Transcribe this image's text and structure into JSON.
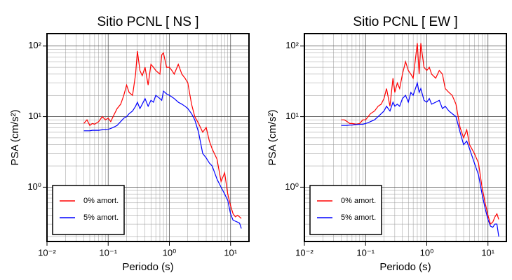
{
  "chart_data": [
    {
      "type": "line",
      "title": "Sitio PCNL [ NS ]",
      "x_label": "Periodo (s)",
      "y_label": "PSA (cm/s²)",
      "xscale": "log",
      "yscale": "log",
      "grid": true,
      "legend": "lower left",
      "xlim": [
        0.01,
        20
      ],
      "ylim": [
        0.17,
        150
      ],
      "xticks": [
        {
          "value": 0.01,
          "label": "10⁻²"
        },
        {
          "value": 0.1,
          "label": "10⁻¹"
        },
        {
          "value": 1,
          "label": "10⁰"
        },
        {
          "value": 10,
          "label": "10¹"
        }
      ],
      "yticks": [
        {
          "value": 1,
          "label": "10⁰"
        },
        {
          "value": 10,
          "label": "10¹"
        },
        {
          "value": 100,
          "label": "10²"
        }
      ],
      "x": [
        0.04,
        0.045,
        0.05,
        0.055,
        0.06,
        0.07,
        0.08,
        0.09,
        0.1,
        0.11,
        0.12,
        0.14,
        0.16,
        0.18,
        0.2,
        0.22,
        0.25,
        0.28,
        0.3,
        0.33,
        0.36,
        0.4,
        0.45,
        0.5,
        0.55,
        0.6,
        0.7,
        0.75,
        0.8,
        0.9,
        1.0,
        1.1,
        1.2,
        1.4,
        1.6,
        1.8,
        2.0,
        2.3,
        2.6,
        3.0,
        3.5,
        4.0,
        4.5,
        5,
        6,
        7,
        8,
        9,
        10,
        11,
        12,
        13,
        14,
        15
      ],
      "series": [
        {
          "name": "0% amort.",
          "color": "#ff0000",
          "values": [
            8,
            9,
            7.5,
            8,
            7.8,
            8.5,
            10,
            9,
            9.5,
            8.5,
            10,
            13,
            15,
            20,
            28,
            22,
            20,
            40,
            85,
            45,
            38,
            50,
            28,
            55,
            50,
            45,
            40,
            75,
            80,
            50,
            50,
            45,
            40,
            55,
            40,
            35,
            30,
            15,
            10,
            8,
            6,
            7,
            4.5,
            3.5,
            2.5,
            1.2,
            1.6,
            0.8,
            0.55,
            0.42,
            0.38,
            0.4,
            0.38,
            0.36
          ]
        },
        {
          "name": "5% amort.",
          "color": "#0000ff",
          "values": [
            6.3,
            6.3,
            6.3,
            6.4,
            6.4,
            6.4,
            6.5,
            6.5,
            6.6,
            6.8,
            7,
            7.5,
            8.5,
            9.5,
            10,
            11,
            12,
            14,
            16,
            13,
            15,
            18,
            14,
            17,
            16,
            20,
            18,
            17,
            23,
            21,
            20,
            19,
            18,
            16,
            15,
            14,
            13,
            11,
            9,
            6,
            3,
            2.6,
            2.2,
            2,
            1.3,
            1,
            0.8,
            0.65,
            0.42,
            0.34,
            0.33,
            0.32,
            0.31,
            0.26
          ]
        }
      ]
    },
    {
      "type": "line",
      "title": "Sitio PCNL [ EW ]",
      "x_label": "Periodo (s)",
      "y_label": "PSA (cm/s²)",
      "xscale": "log",
      "yscale": "log",
      "grid": true,
      "legend": "lower left",
      "xlim": [
        0.01,
        20
      ],
      "ylim": [
        0.17,
        150
      ],
      "xticks": [
        {
          "value": 0.01,
          "label": "10⁻²"
        },
        {
          "value": 0.1,
          "label": "10⁻¹"
        },
        {
          "value": 1,
          "label": "10⁰"
        },
        {
          "value": 10,
          "label": "10¹"
        }
      ],
      "yticks": [
        {
          "value": 1,
          "label": "10⁰"
        },
        {
          "value": 10,
          "label": "10¹"
        },
        {
          "value": 100,
          "label": "10²"
        }
      ],
      "x": [
        0.04,
        0.045,
        0.05,
        0.055,
        0.06,
        0.07,
        0.08,
        0.09,
        0.1,
        0.11,
        0.12,
        0.14,
        0.16,
        0.18,
        0.2,
        0.22,
        0.25,
        0.28,
        0.3,
        0.33,
        0.36,
        0.4,
        0.45,
        0.5,
        0.55,
        0.6,
        0.7,
        0.75,
        0.8,
        0.9,
        1.0,
        1.1,
        1.2,
        1.4,
        1.6,
        1.8,
        2.0,
        2.3,
        2.6,
        3.0,
        3.5,
        4.0,
        4.5,
        5,
        6,
        7,
        8,
        9,
        10,
        11,
        12,
        13,
        14,
        15
      ],
      "series": [
        {
          "name": "0% amort.",
          "color": "#ff0000",
          "values": [
            9,
            9,
            8.5,
            8,
            8,
            7.8,
            8,
            9,
            9,
            10,
            11,
            12,
            14,
            15,
            18,
            25,
            14,
            35,
            22,
            30,
            25,
            40,
            60,
            45,
            40,
            35,
            110,
            40,
            110,
            50,
            45,
            50,
            40,
            35,
            45,
            40,
            25,
            22,
            20,
            15,
            7,
            5,
            6.5,
            4,
            3,
            2.2,
            1,
            0.6,
            0.4,
            0.3,
            0.32,
            0.38,
            0.42,
            0.35
          ]
        },
        {
          "name": "5% amort.",
          "color": "#0000ff",
          "values": [
            7.5,
            7.5,
            7.5,
            7.6,
            7.6,
            7.7,
            7.8,
            7.8,
            8,
            8.2,
            8.5,
            9,
            10,
            11,
            12,
            14,
            12,
            16,
            14,
            15,
            14,
            18,
            20,
            16,
            22,
            20,
            30,
            22,
            25,
            17,
            16,
            18,
            15,
            16,
            17,
            13,
            14,
            12,
            11,
            10,
            6,
            4,
            4.5,
            3.5,
            2.2,
            1.5,
            0.8,
            0.5,
            0.35,
            0.28,
            0.27,
            0.3,
            0.3,
            0.2
          ]
        }
      ]
    }
  ]
}
